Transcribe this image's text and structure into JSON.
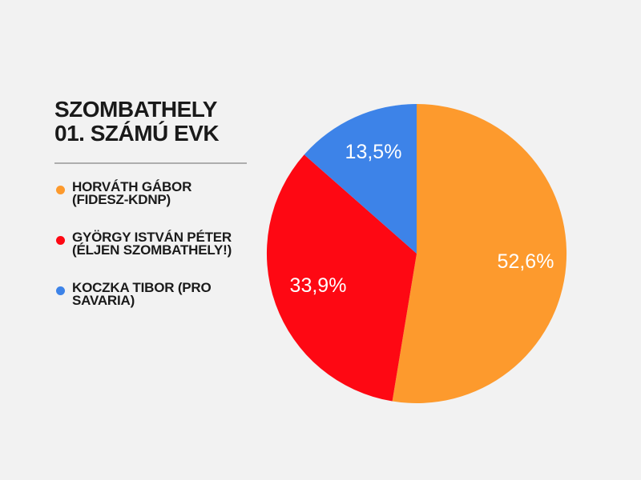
{
  "page": {
    "background": "#F2F2F2",
    "text_color": "#1A1A1A"
  },
  "header": {
    "title_line1": "SZOMBATHELY",
    "title_line2": "01. SZÁMÚ EVK"
  },
  "legend": {
    "items": [
      {
        "label_line1": "HORVÁTH GÁBOR",
        "label_line2": "(FIDESZ-KDNP)"
      },
      {
        "label_line1": "GYÖRGY ISTVÁN PÉTER",
        "label_line2": "(ÉLJEN SZOMBATHELY!)"
      },
      {
        "label_line1": "KOCZKA TIBOR (PRO",
        "label_line2": "SAVARIA)"
      }
    ]
  },
  "chart_data": {
    "type": "pie",
    "title": "SZOMBATHELY 01. SZÁMÚ EVK",
    "categories": [
      "HORVÁTH GÁBOR (FIDESZ-KDNP)",
      "GYÖRGY ISTVÁN PÉTER (ÉLJEN SZOMBATHELY!)",
      "KOCZKA TIBOR (PRO SAVARIA)"
    ],
    "values": [
      52.6,
      33.9,
      13.5
    ],
    "labels": [
      "52,6%",
      "33,9%",
      "13,5%"
    ],
    "colors": [
      "#FD9A2D",
      "#FE0813",
      "#3D83E8"
    ],
    "slice_label_color": "#FFFFFF",
    "start_angle_deg": 0,
    "direction": "clockwise",
    "legend_position": "left",
    "grid": false
  }
}
